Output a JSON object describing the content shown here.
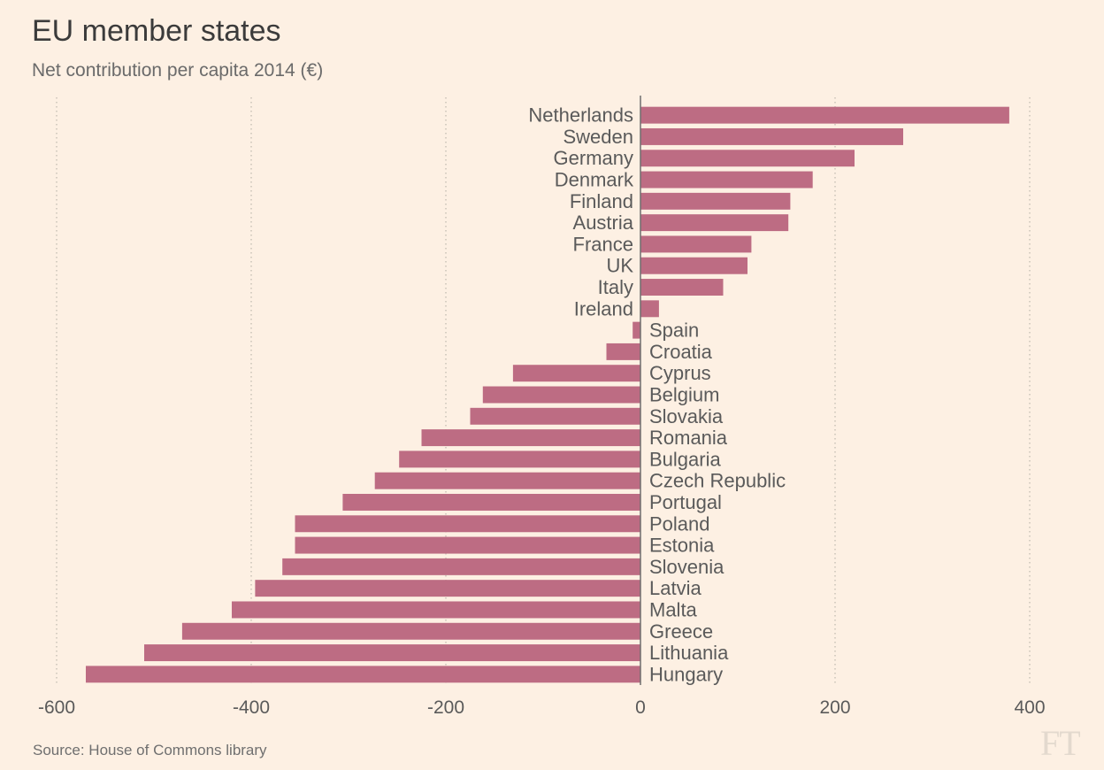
{
  "header": {
    "title": "EU member states",
    "subtitle": "Net contribution per capita 2014 (€)"
  },
  "footer": {
    "source": "Source: House of Commons library",
    "logo": "FT"
  },
  "colors": {
    "background": "#fdf0e3",
    "bar": "#bd6c83",
    "grid": "#c9c2b8",
    "axis": "#6e6e6e",
    "label": "#5a5a5a"
  },
  "chart_data": {
    "type": "bar",
    "orientation": "horizontal",
    "title": "EU member states",
    "subtitle": "Net contribution per capita 2014 (€)",
    "xlabel": "",
    "ylabel": "",
    "xlim": [
      -600,
      400
    ],
    "xticks": [
      -600,
      -400,
      -200,
      0,
      200,
      400
    ],
    "xtick_labels": [
      "-600",
      "-400",
      "-200",
      "0",
      "200",
      "400"
    ],
    "grid": "vertical dotted",
    "categories": [
      "Netherlands",
      "Sweden",
      "Germany",
      "Denmark",
      "Finland",
      "Austria",
      "France",
      "UK",
      "Italy",
      "Ireland",
      "Spain",
      "Croatia",
      "Cyprus",
      "Belgium",
      "Slovakia",
      "Romania",
      "Bulgaria",
      "Czech Republic",
      "Portugal",
      "Poland",
      "Estonia",
      "Slovenia",
      "Latvia",
      "Malta",
      "Greece",
      "Lithuania",
      "Hungary"
    ],
    "values": [
      379,
      270,
      220,
      177,
      154,
      152,
      114,
      110,
      85,
      19,
      -8,
      -35,
      -131,
      -162,
      -175,
      -225,
      -248,
      -273,
      -306,
      -355,
      -355,
      -368,
      -396,
      -420,
      -471,
      -510,
      -570
    ]
  }
}
